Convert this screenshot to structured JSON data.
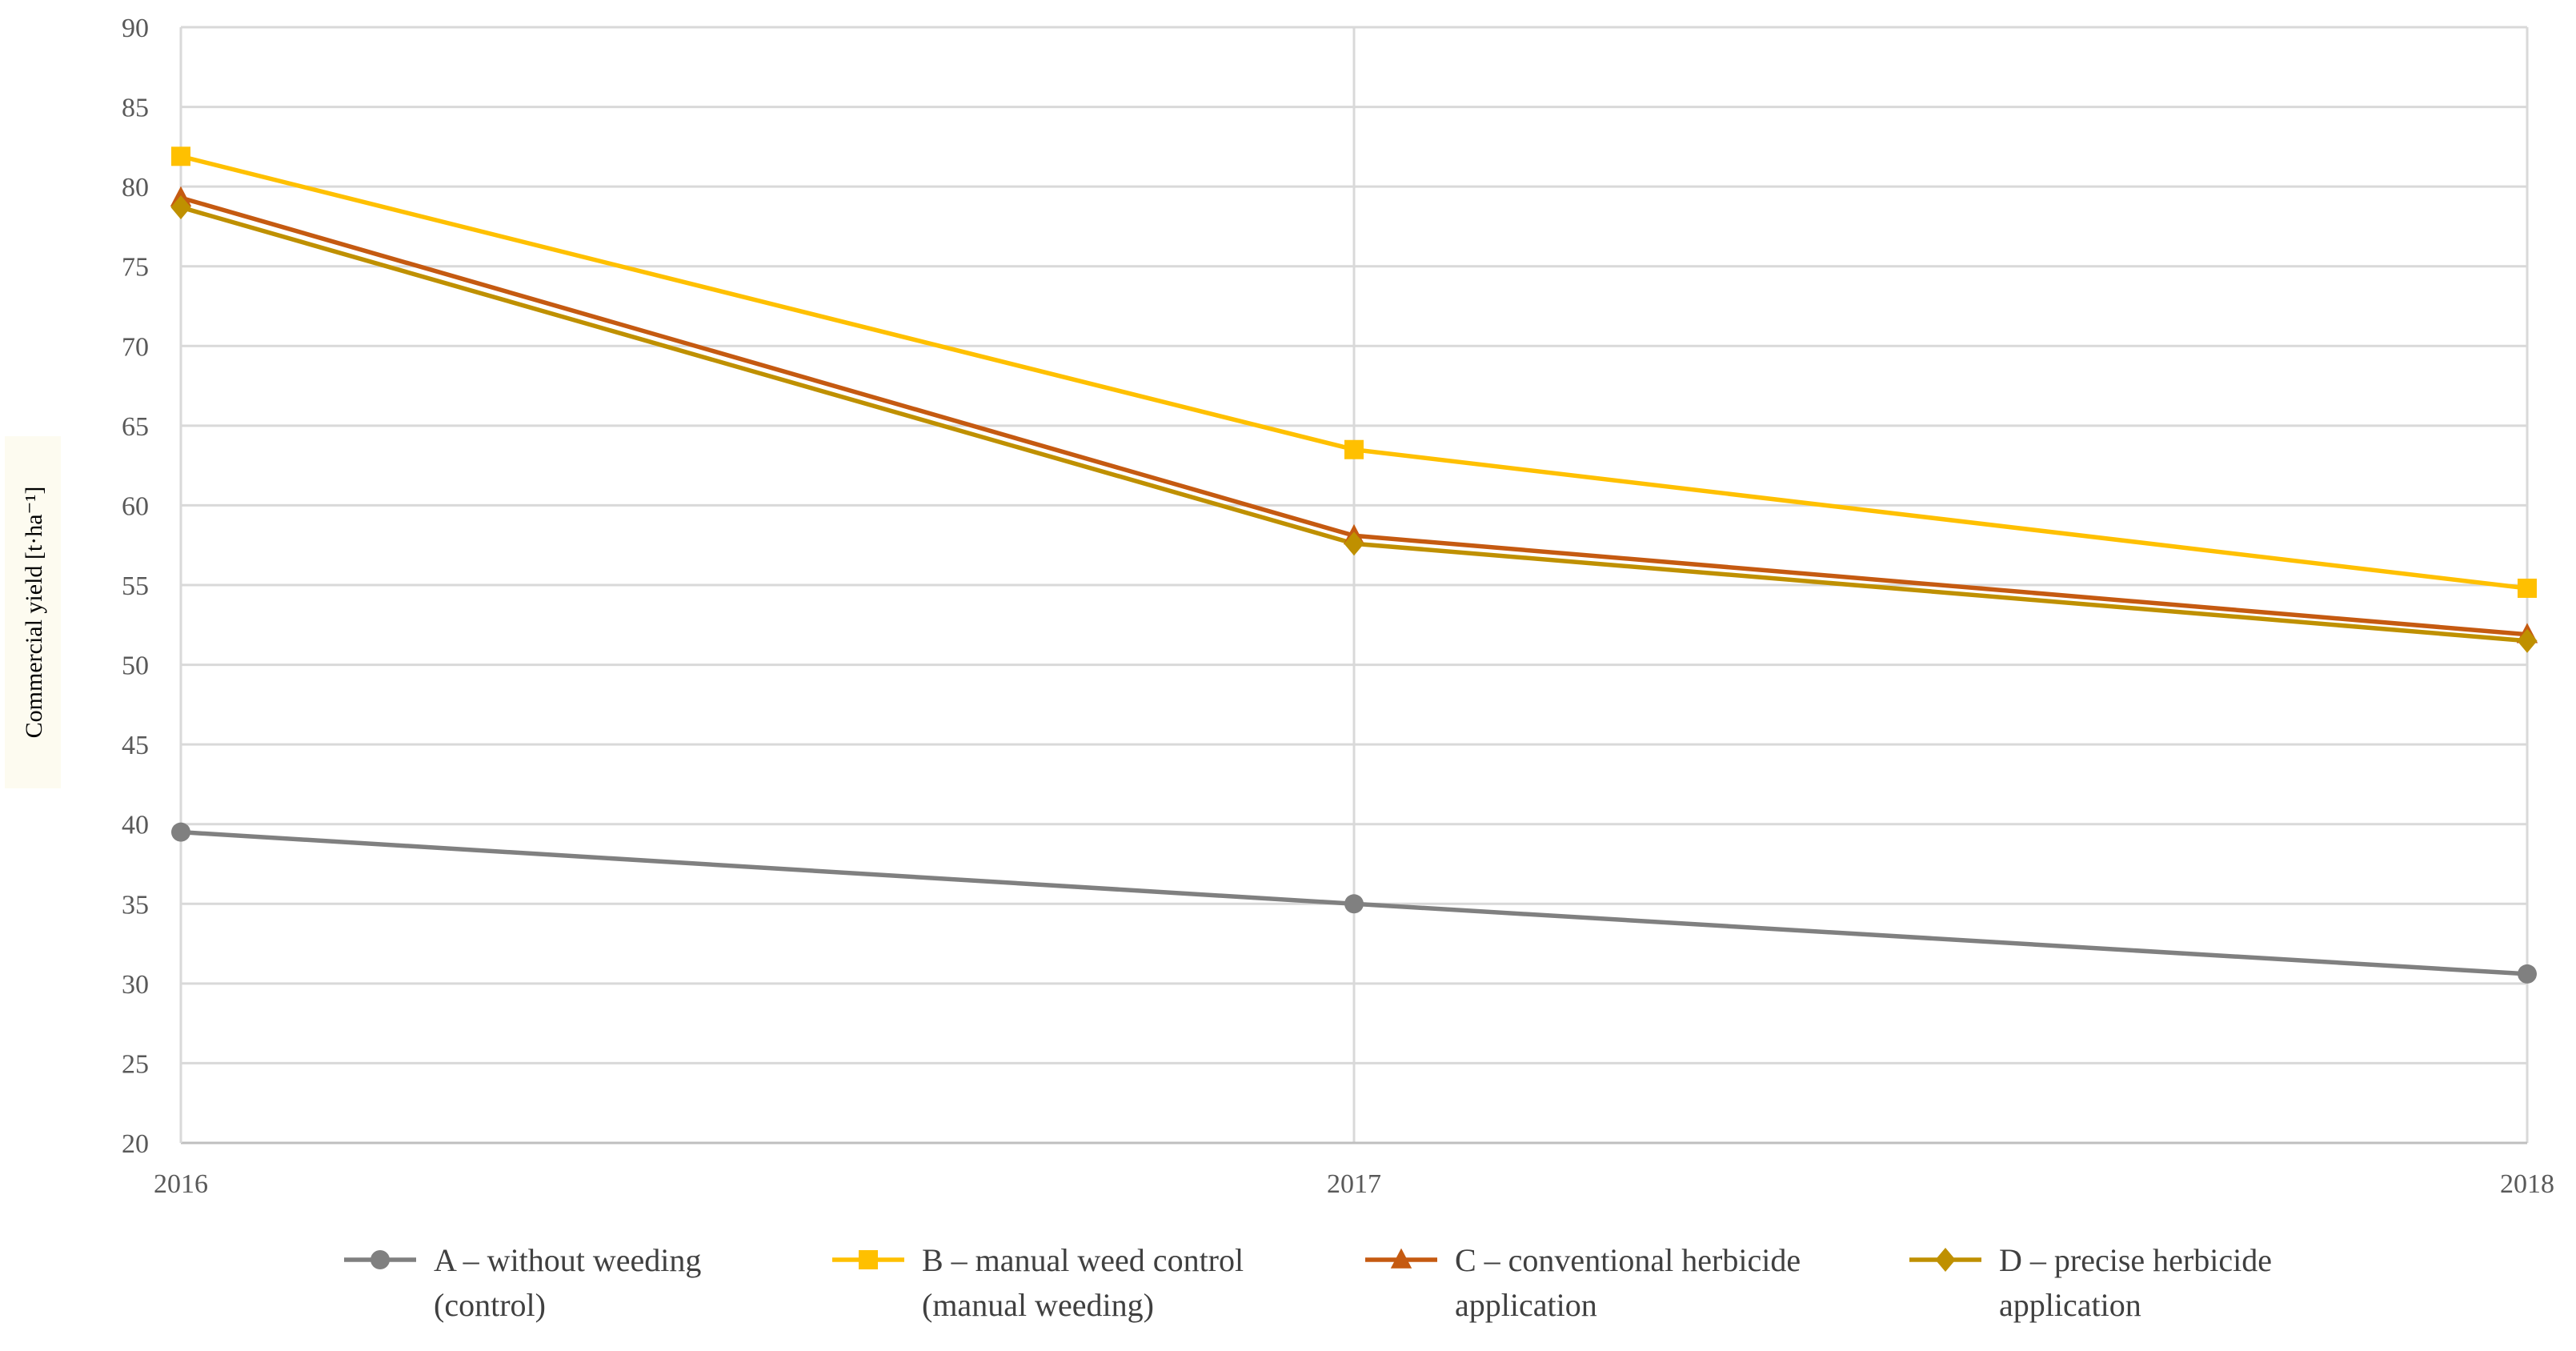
{
  "chart_data": {
    "type": "line",
    "title": "",
    "xlabel": "",
    "ylabel": "Commercial yield [t·ha⁻¹]",
    "x": [
      "2016",
      "2017",
      "2018"
    ],
    "ylim": [
      20,
      90
    ],
    "yticks": [
      "20",
      "25",
      "30",
      "35",
      "40",
      "45",
      "50",
      "55",
      "60",
      "65",
      "70",
      "75",
      "80",
      "85",
      "90"
    ],
    "grid": true,
    "legend_position": "bottom",
    "series": [
      {
        "name": "A – without weeding (control)",
        "legend_lines": [
          "A – without weeding",
          "(control)"
        ],
        "color": "#808080",
        "marker": "circle",
        "values": [
          39.5,
          35.0,
          30.6
        ]
      },
      {
        "name": "B – manual weed control (manual weeding)",
        "legend_lines": [
          "B – manual weed control",
          "(manual weeding)"
        ],
        "color": "#FFC000",
        "marker": "square",
        "values": [
          81.9,
          63.5,
          54.8
        ]
      },
      {
        "name": "C – conventional herbicide application",
        "legend_lines": [
          "C – conventional herbicide",
          "application"
        ],
        "color": "#C55A11",
        "marker": "triangle",
        "values": [
          79.3,
          58.1,
          51.9
        ]
      },
      {
        "name": "D – precise herbicide application",
        "legend_lines": [
          "D – precise herbicide",
          "application"
        ],
        "color": "#BF9000",
        "marker": "diamond",
        "values": [
          78.7,
          57.6,
          51.5
        ]
      }
    ]
  }
}
